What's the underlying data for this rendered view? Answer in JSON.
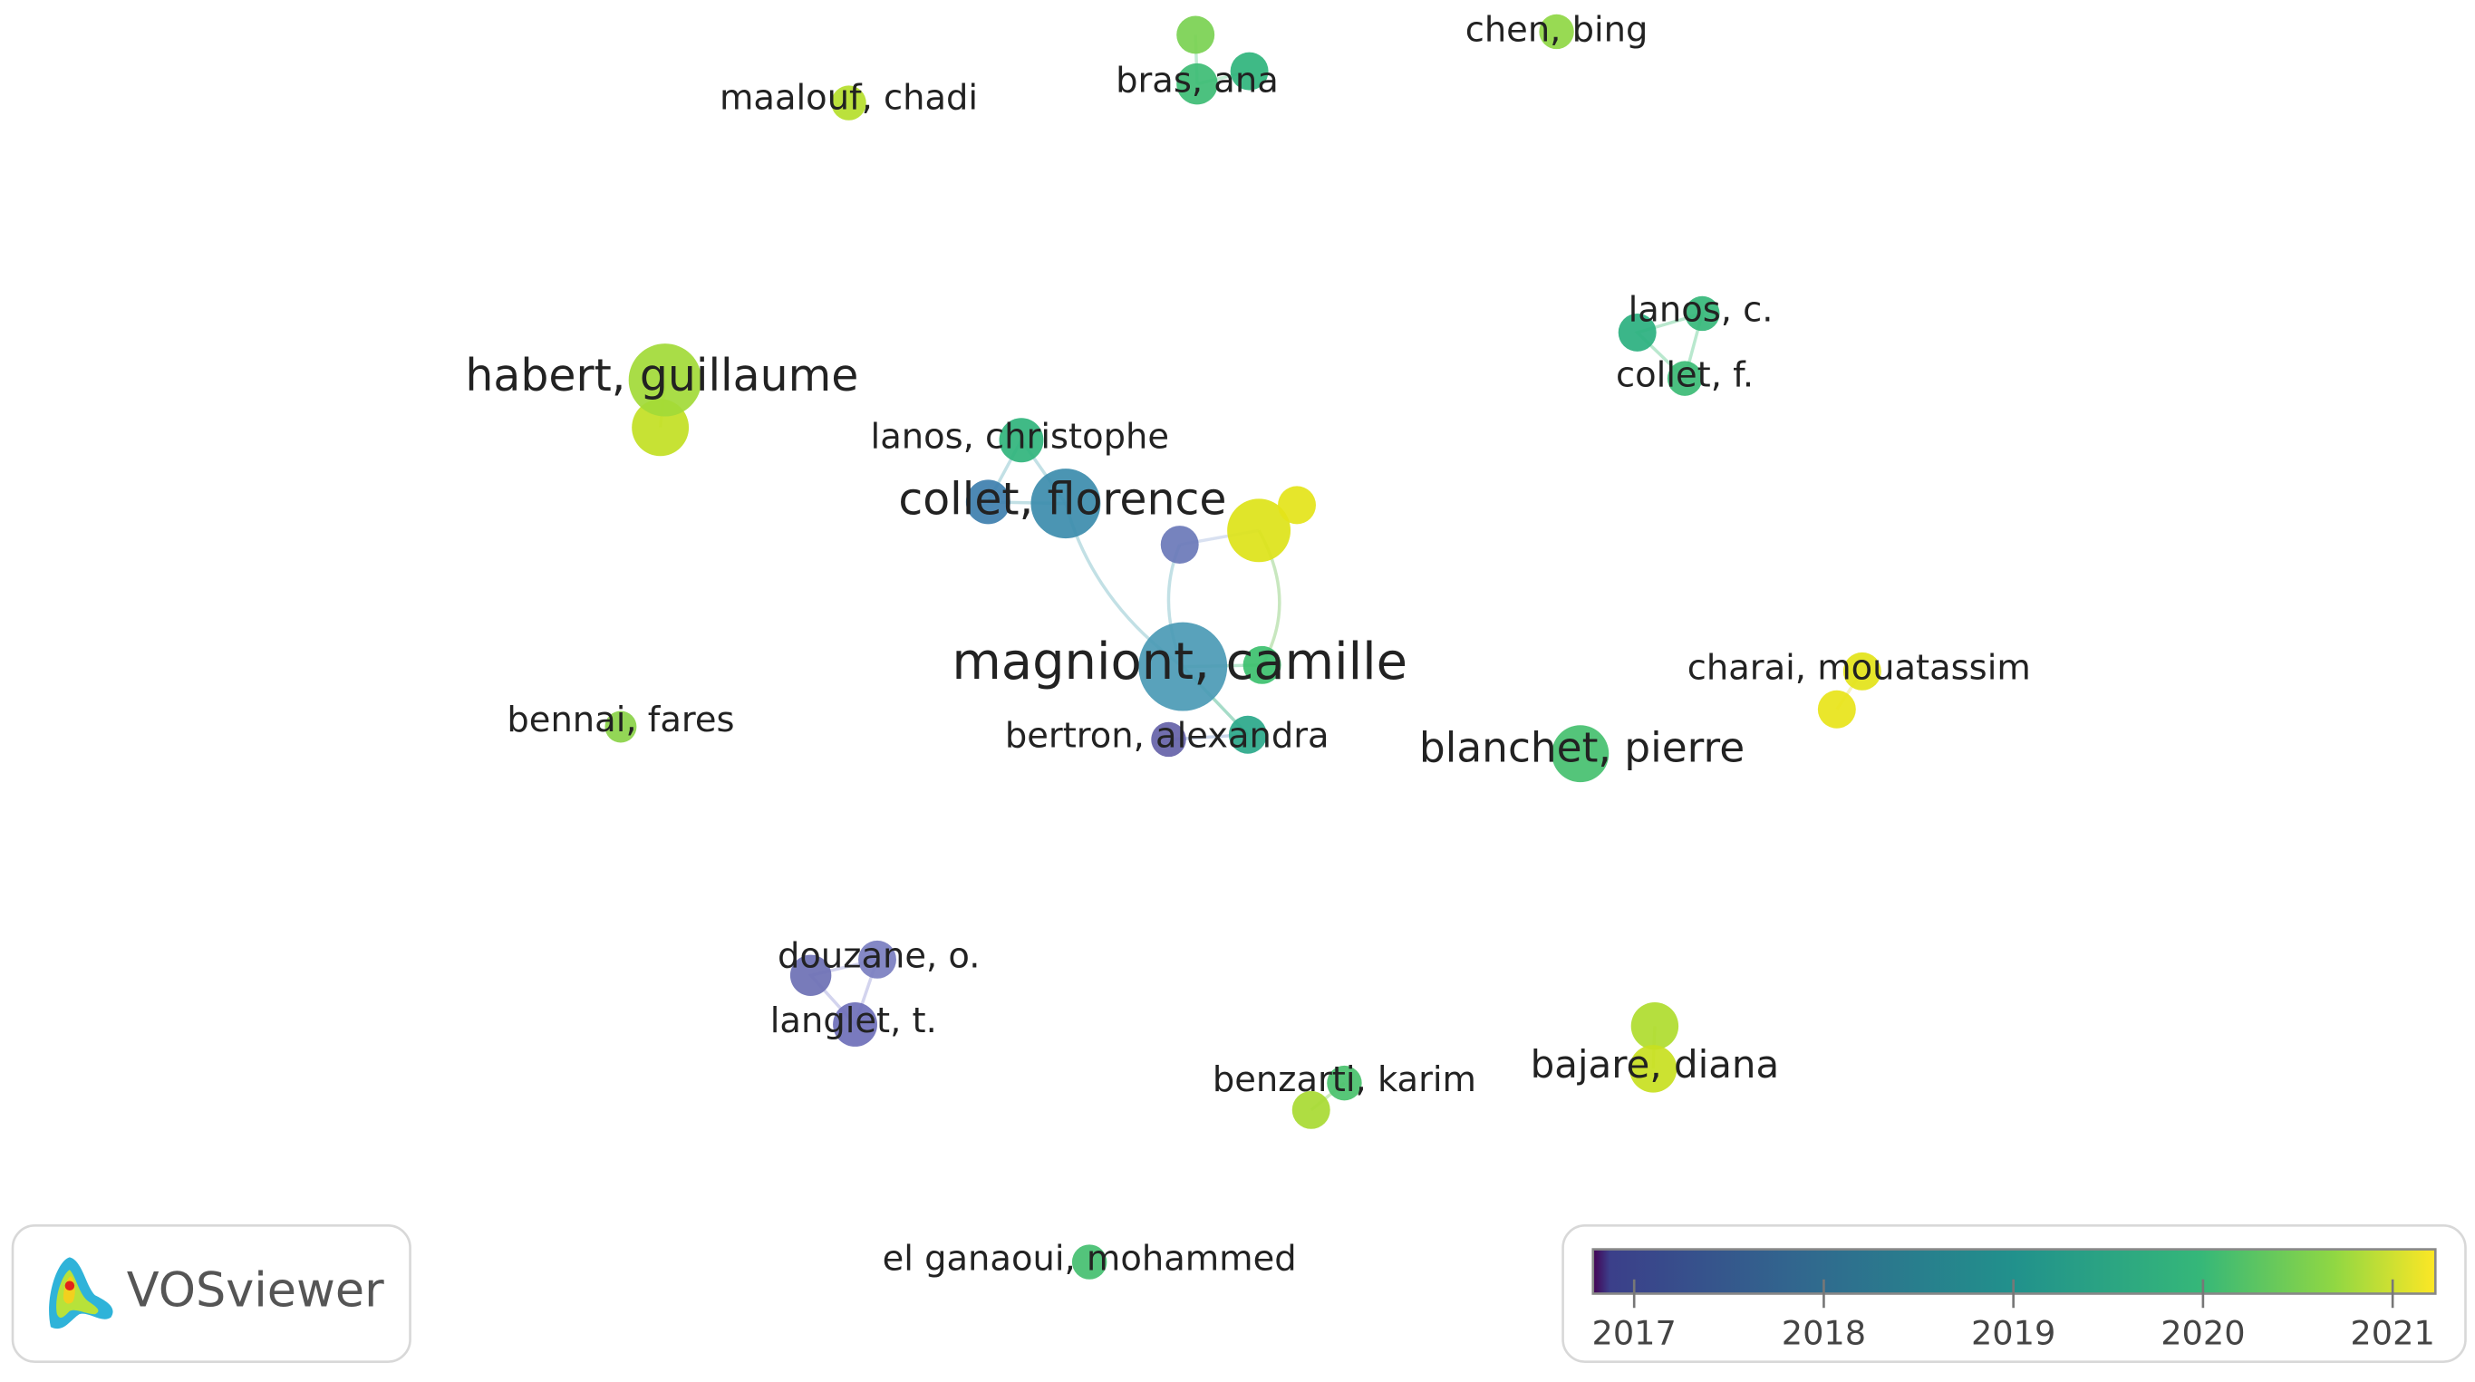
{
  "nodes": [
    {
      "label": "maalouf, chadi"
    },
    {
      "label": "bras, ana"
    },
    {
      "label": "chen, bing"
    },
    {
      "label": "lanos, c."
    },
    {
      "label": "collet, f."
    },
    {
      "label": "habert, guillaume"
    },
    {
      "label": "lanos, christophe"
    },
    {
      "label": "collet, florence"
    },
    {
      "label": "magniont, camille"
    },
    {
      "label": "bertron, alexandra"
    },
    {
      "label": "bennai, fares"
    },
    {
      "label": "charai, mouatassim"
    },
    {
      "label": "blanchet, pierre"
    },
    {
      "label": "douzane, o."
    },
    {
      "label": "langlet, t."
    },
    {
      "label": "benzarti, karim"
    },
    {
      "label": "bajare, diana"
    },
    {
      "label": "el ganaoui, mohammed"
    }
  ],
  "legend": {
    "ticks": [
      2017,
      2018,
      2019,
      2020,
      2021
    ]
  },
  "logo": {
    "text": "VOSviewer"
  }
}
